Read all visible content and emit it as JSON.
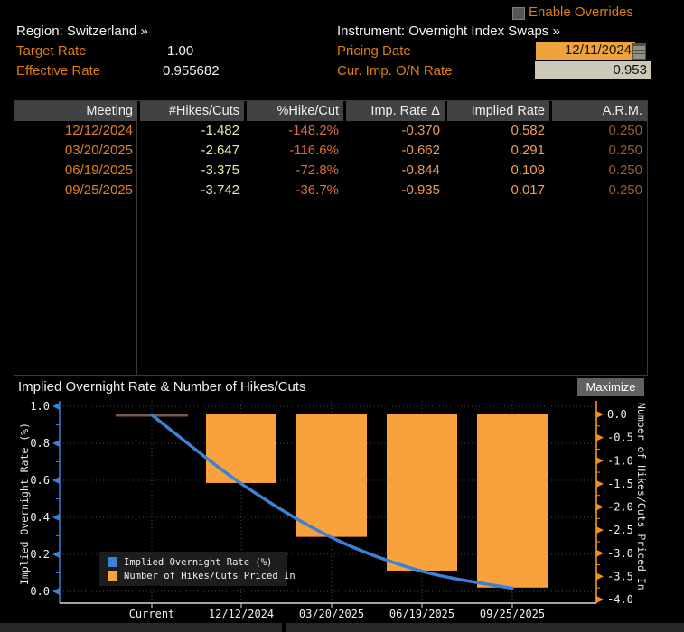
{
  "header": {
    "enable_overrides_label": "Enable Overrides",
    "region_label": "Region: Switzerland »",
    "instrument_label": "Instrument: Overnight Index Swaps »",
    "target_rate_label": "Target Rate",
    "target_rate_value": "1.00",
    "effective_rate_label": "Effective Rate",
    "effective_rate_value": "0.955682",
    "pricing_date_label": "Pricing Date",
    "pricing_date_value": "12/11/2024",
    "cur_imp_on_rate_label": "Cur. Imp. O/N Rate",
    "cur_imp_on_rate_value": "0.953"
  },
  "table": {
    "headers": [
      "Meeting",
      "#Hikes/Cuts",
      "%Hike/Cut",
      "Imp. Rate Δ",
      "Implied Rate",
      "A.R.M."
    ],
    "rows": [
      [
        "12/12/2024",
        "-1.482",
        "-148.2%",
        "-0.370",
        "0.582",
        "0.250"
      ],
      [
        "03/20/2025",
        "-2.647",
        "-116.6%",
        "-0.662",
        "0.291",
        "0.250"
      ],
      [
        "06/19/2025",
        "-3.375",
        "-72.8%",
        "-0.844",
        "0.109",
        "0.250"
      ],
      [
        "09/25/2025",
        "-3.742",
        "-36.7%",
        "-0.935",
        "0.017",
        "0.250"
      ]
    ]
  },
  "chart": {
    "title": "Implied Overnight Rate & Number of Hikes/Cuts",
    "maximize_label": "Maximize"
  },
  "chart_data": {
    "type": "line+bar",
    "title": "Implied Overnight Rate & Number of Hikes/Cuts",
    "categories": [
      "Current",
      "12/12/2024",
      "03/20/2025",
      "06/19/2025",
      "09/25/2025"
    ],
    "series": [
      {
        "name": "Implied Overnight Rate (%)",
        "type": "line",
        "axis": "left",
        "color": "#3b82d6",
        "values": [
          0.953,
          0.582,
          0.291,
          0.109,
          0.017
        ]
      },
      {
        "name": "Number of Hikes/Cuts Priced In",
        "type": "bar",
        "axis": "right",
        "color": "#f9a13a",
        "values": [
          null,
          -1.482,
          -2.647,
          -3.375,
          -3.742
        ]
      }
    ],
    "left_axis": {
      "label": "Implied Overnight Rate (%)",
      "min": 0,
      "max": 1,
      "ticks": [
        "1.0",
        "0.8",
        "0.6",
        "0.4",
        "0.2",
        "0.0"
      ]
    },
    "right_axis": {
      "label": "Number of Hikes/Cuts Priced In",
      "min": -4,
      "max": 0,
      "ticks": [
        "0.0",
        "-0.5",
        "-1.0",
        "-1.5",
        "-2.0",
        "-2.5",
        "-3.0",
        "-3.5",
        "-4.0"
      ]
    },
    "current_rate_marker": 0.95,
    "legend_position": "bottom-left",
    "grid": true
  },
  "colors": {
    "accent_orange": "#f9a13a",
    "line_blue": "#3b82d6",
    "label_orange": "#dd7c12",
    "input_orange_bg": "#efa33d",
    "input_beige_bg": "#cdc9b8",
    "marker_red": "#7d564f",
    "header_gray": "#424242"
  }
}
